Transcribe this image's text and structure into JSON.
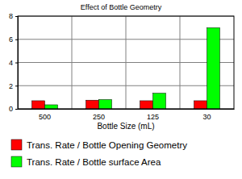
{
  "chart_data": {
    "type": "bar",
    "title": "Effect of Bottle Geometry",
    "x_label": "Bottle Size (mL)",
    "categories": [
      "500",
      "250",
      "125",
      "30"
    ],
    "series": [
      {
        "name": "Trans. Rate / Bottle Opening Geometry",
        "color": "#ff0000",
        "values": [
          0.7,
          0.75,
          0.7,
          0.7
        ]
      },
      {
        "name": "Trans. Rate / Bottle surface Area",
        "color": "#00ff00",
        "values": [
          0.35,
          0.8,
          1.35,
          7.0
        ]
      }
    ],
    "ylim": [
      0,
      8
    ],
    "yticks": [
      0,
      2,
      4,
      6,
      8
    ],
    "grid": true,
    "legend": "bottom"
  }
}
